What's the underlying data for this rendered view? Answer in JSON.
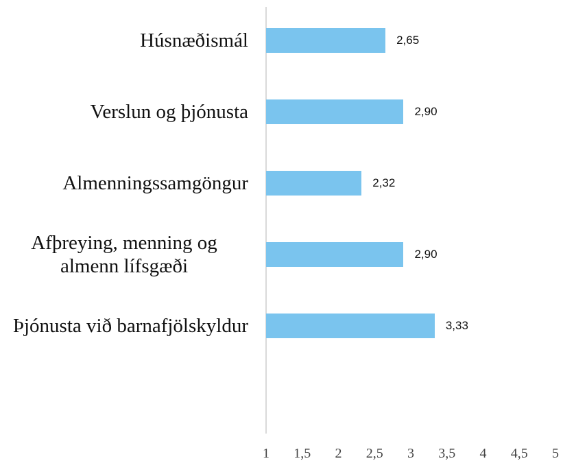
{
  "chart_data": {
    "type": "bar",
    "orientation": "horizontal",
    "categories": [
      "Húsnæðismál",
      "Verslun og þjónusta",
      "Almenningssamgöngur",
      "Afþreying, menning og almenn lífsgæði",
      "Þjónusta við barnafjölskyldur"
    ],
    "values": [
      2.65,
      2.9,
      2.32,
      2.9,
      3.33
    ],
    "value_labels": [
      "2,65",
      "2,90",
      "2,32",
      "2,90",
      "3,33"
    ],
    "color": "#7ac4ee",
    "xlim": [
      1,
      5
    ],
    "xticks": [
      1,
      {
        "value": 1.5,
        "label": "1,5"
      },
      2,
      {
        "value": 2.5,
        "label": "2,5"
      },
      3,
      {
        "value": 3.5,
        "label": "3,5"
      },
      4,
      {
        "value": 4.5,
        "label": "4,5"
      },
      5
    ],
    "grid": false
  }
}
